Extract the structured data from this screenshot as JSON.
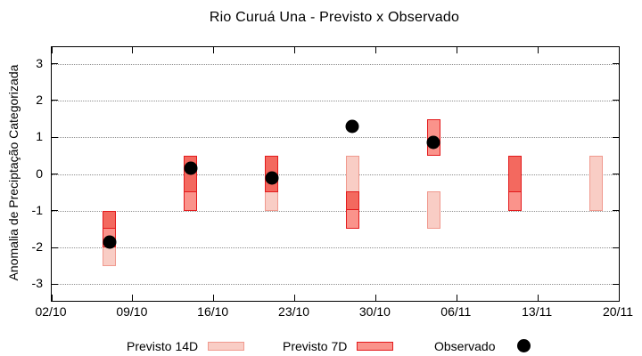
{
  "chart": {
    "title": "Rio Curuá Una - Previsto x Observado",
    "ylabel": "Anomalia de Preciptação Categorizada",
    "legend": [
      {
        "label": "Previsto 14D",
        "swatch": "box",
        "style": "p14"
      },
      {
        "label": "Previsto 7D",
        "swatch": "box",
        "style": "p7"
      },
      {
        "label": "Observado",
        "swatch": "dot"
      }
    ]
  },
  "chart_data": {
    "type": "bar",
    "subtype": "floating-category-range-bars-with-observed-scatter",
    "title": "Rio Curuá Una - Previsto x Observado",
    "xlabel": "",
    "ylabel": "Anomalia de Preciptação Categorizada",
    "ylim": [
      -3.45,
      3.45
    ],
    "yticks": [
      3,
      2,
      1,
      0,
      -1,
      -2,
      -3
    ],
    "xtick_labels": [
      "02/10",
      "09/10",
      "16/10",
      "23/10",
      "30/10",
      "06/11",
      "13/11",
      "20/11"
    ],
    "xtick_days": [
      0,
      7,
      14,
      21,
      28,
      35,
      42,
      49
    ],
    "total_days": 49,
    "grid": "horizontal-dotted-gray",
    "legend_position": "bottom-center",
    "colors": {
      "observed": "#000000",
      "grid": "#8f8f8f",
      "axis": "#000000",
      "p14_fill": "#f9cdc5",
      "p14_border": "#f0998e",
      "p7_fill": "#fa938b",
      "p7_border": "#e31a1c",
      "overlap_fill": "#f3695f",
      "overlap_border": "#e31a1c"
    },
    "styles": {
      "p14": {
        "fill": "#f9cdc5",
        "border": "#f0998e"
      },
      "p7": {
        "fill": "#fa938b",
        "border": "#e31a1c"
      },
      "overlap": {
        "fill": "#f3695f",
        "border": "#e31a1c"
      }
    },
    "clusters": [
      {
        "date": "07/10",
        "day": 5,
        "segments": [
          {
            "from": -1.0,
            "to": -1.5,
            "style": "overlap"
          },
          {
            "from": -1.5,
            "to": -2.0,
            "style": "p7"
          },
          {
            "from": -2.0,
            "to": -2.5,
            "style": "p14"
          }
        ],
        "observed": -1.85
      },
      {
        "date": "14/10",
        "day": 12,
        "segments": [
          {
            "from": 0.5,
            "to": -0.5,
            "style": "overlap"
          },
          {
            "from": -0.5,
            "to": -1.0,
            "style": "p7"
          }
        ],
        "observed": 0.15
      },
      {
        "date": "21/10",
        "day": 19,
        "segments": [
          {
            "from": 0.5,
            "to": -0.5,
            "style": "overlap"
          },
          {
            "from": -0.5,
            "to": -1.0,
            "style": "p14"
          }
        ],
        "observed": -0.1
      },
      {
        "date": "28/10",
        "day": 26,
        "segments": [
          {
            "from": 0.5,
            "to": -0.5,
            "style": "p14"
          },
          {
            "from": -0.5,
            "to": -1.0,
            "style": "overlap"
          },
          {
            "from": -1.0,
            "to": -1.5,
            "style": "p7"
          }
        ],
        "observed": 1.3
      },
      {
        "date": "04/11",
        "day": 33,
        "segments": [
          {
            "from": 1.5,
            "to": 0.5,
            "style": "p7"
          },
          {
            "from": -0.5,
            "to": -1.5,
            "style": "p14"
          }
        ],
        "observed": 0.87
      },
      {
        "date": "11/11",
        "day": 40,
        "segments": [
          {
            "from": 0.5,
            "to": -0.5,
            "style": "overlap"
          },
          {
            "from": -0.5,
            "to": -1.0,
            "style": "p7"
          }
        ],
        "observed": null
      },
      {
        "date": "18/11",
        "day": 47,
        "segments": [
          {
            "from": 0.5,
            "to": -1.0,
            "style": "p14"
          }
        ],
        "observed": null
      }
    ]
  }
}
